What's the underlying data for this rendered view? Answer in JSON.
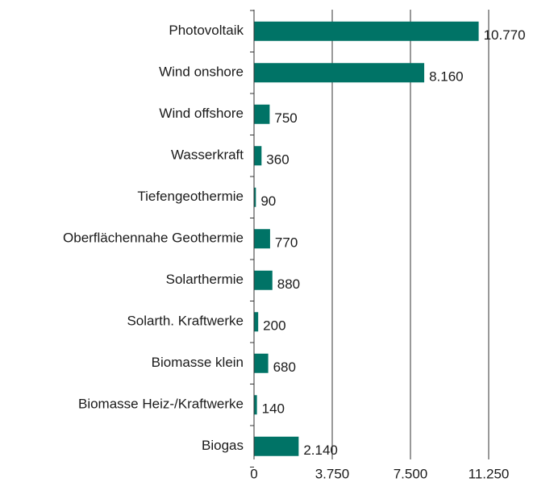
{
  "chart_data": {
    "type": "hbar",
    "categories": [
      "Photovoltaik",
      "Wind onshore",
      "Wind offshore",
      "Wasserkraft",
      "Tiefengeothermie",
      "Oberflächennahe Geothermie",
      "Solarthermie",
      "Solarth. Kraftwerke",
      "Biomasse klein",
      "Biomasse Heiz-/Kraftwerke",
      "Biogas"
    ],
    "values": [
      10770,
      8160,
      750,
      360,
      90,
      770,
      880,
      200,
      680,
      140,
      2140
    ],
    "value_labels": [
      "10.770",
      "8.160",
      "750",
      "360",
      "90",
      "770",
      "880",
      "200",
      "680",
      "140",
      "2.140"
    ],
    "color": "#007366",
    "xlim": [
      0,
      11250
    ],
    "xticks": [
      0,
      {
        "value": 3750,
        "label": "3.750"
      },
      {
        "value": 7500,
        "label": "7.500"
      },
      {
        "value": 11250,
        "label": "11.250"
      }
    ],
    "grid": true
  }
}
